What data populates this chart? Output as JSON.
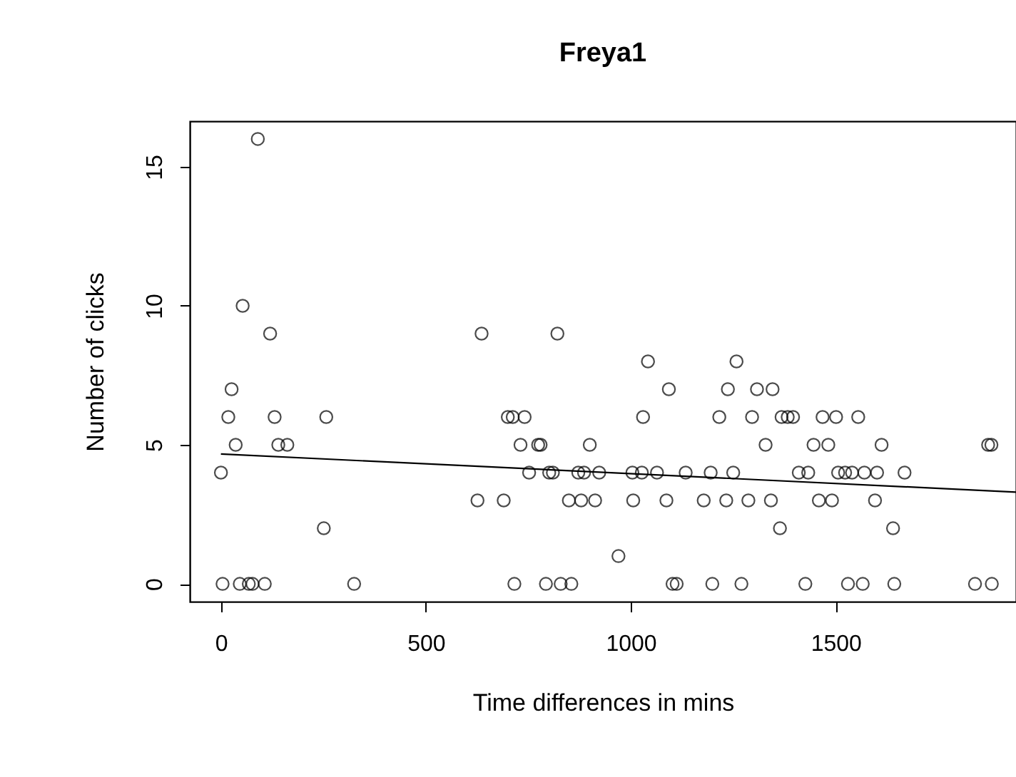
{
  "chart_data": {
    "type": "scatter",
    "title": "Freya1",
    "xlabel": "Time differences in mins",
    "ylabel": "Number of clicks",
    "xlim": [
      -76,
      1940
    ],
    "ylim": [
      -0.64,
      16.64
    ],
    "xticks": [
      0,
      500,
      1000,
      1500
    ],
    "yticks": [
      0,
      5,
      10,
      15
    ],
    "grid": false,
    "legend": false,
    "marker": "circle",
    "series": [
      {
        "color": "#000000",
        "x": [
          90,
          53,
          120,
          636,
          821,
          1042,
          1258,
          26,
          1093,
          1237,
          1308,
          1346,
          18,
          131,
          257,
          700,
          712,
          741,
          1030,
          1216,
          1296,
          1368,
          1383,
          1396,
          1468,
          1501,
          1555,
          36,
          140,
          162,
          731,
          774,
          780,
          900,
          1329,
          1446,
          1482,
          1612,
          1872,
          1880,
          0,
          752,
          801,
          810,
          872,
          886,
          923,
          1004,
          1027,
          1064,
          1134,
          1195,
          1250,
          1410,
          1433,
          1506,
          1523,
          1540,
          1570,
          1601,
          1668,
          626,
          690,
          849,
          879,
          913,
          1006,
          1087,
          1178,
          1233,
          1287,
          1342,
          1459,
          1491,
          1596,
          251,
          1364,
          1640,
          970,
          4,
          46,
          68,
          77,
          107,
          325,
          716,
          793,
          829,
          855,
          1102,
          1112,
          1199,
          1270,
          1426,
          1530,
          1566,
          1643,
          1840,
          1881
        ],
        "values": [
          16,
          10,
          9,
          9,
          9,
          8,
          8,
          7,
          7,
          7,
          7,
          7,
          6,
          6,
          6,
          6,
          6,
          6,
          6,
          6,
          6,
          6,
          6,
          6,
          6,
          6,
          6,
          5,
          5,
          5,
          5,
          5,
          5,
          5,
          5,
          5,
          5,
          5,
          5,
          5,
          4,
          4,
          4,
          4,
          4,
          4,
          4,
          4,
          4,
          4,
          4,
          4,
          4,
          4,
          4,
          4,
          4,
          4,
          4,
          4,
          4,
          3,
          3,
          3,
          3,
          3,
          3,
          3,
          3,
          3,
          3,
          3,
          3,
          3,
          3,
          2,
          2,
          2,
          1,
          0,
          0,
          0,
          0,
          0,
          0,
          0,
          0,
          0,
          0,
          0,
          0,
          0,
          0,
          0,
          0,
          0,
          0,
          0,
          0
        ]
      },
      {
        "type": "line",
        "color": "#000000",
        "line_style": "solid",
        "marker": "none",
        "x": [
          0,
          1940
        ],
        "values": [
          4.67,
          3.3
        ]
      }
    ]
  }
}
